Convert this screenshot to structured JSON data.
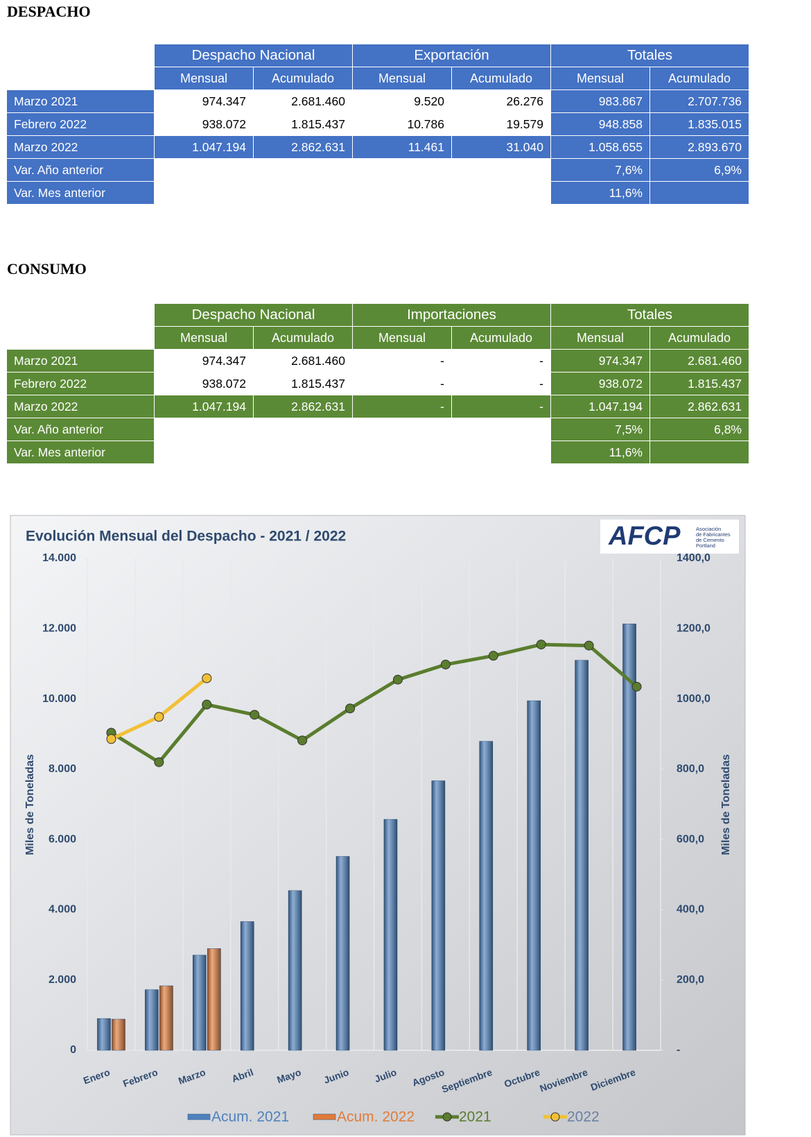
{
  "despacho": {
    "title": "DESPACHO",
    "groups": [
      "Despacho Nacional",
      "Exportación",
      "Totales"
    ],
    "subheaders": [
      "Mensual",
      "Acumulado",
      "Mensual",
      "Acumulado",
      "Mensual",
      "Acumulado"
    ],
    "rows": [
      {
        "label": "Marzo 2021",
        "cells": [
          "974.347",
          "2.681.460",
          "9.520",
          "26.276",
          "983.867",
          "2.707.736"
        ]
      },
      {
        "label": "Febrero 2022",
        "cells": [
          "938.072",
          "1.815.437",
          "10.786",
          "19.579",
          "948.858",
          "1.835.015"
        ]
      },
      {
        "label": "Marzo 2022",
        "cells": [
          "1.047.194",
          "2.862.631",
          "11.461",
          "31.040",
          "1.058.655",
          "2.893.670"
        ]
      }
    ],
    "variations": [
      {
        "label": "Var. Año anterior",
        "cells": [
          "7,6%",
          "6,9%"
        ]
      },
      {
        "label": "Var. Mes anterior",
        "cells": [
          "11,6%"
        ]
      }
    ]
  },
  "consumo": {
    "title": "CONSUMO",
    "groups": [
      "Despacho Nacional",
      "Importaciones",
      "Totales"
    ],
    "subheaders": [
      "Mensual",
      "Acumulado",
      "Mensual",
      "Acumulado",
      "Mensual",
      "Acumulado"
    ],
    "rows": [
      {
        "label": "Marzo 2021",
        "cells": [
          "974.347",
          "2.681.460",
          "-",
          "-",
          "974.347",
          "2.681.460"
        ]
      },
      {
        "label": "Febrero 2022",
        "cells": [
          "938.072",
          "1.815.437",
          "-",
          "-",
          "938.072",
          "1.815.437"
        ]
      },
      {
        "label": "Marzo 2022",
        "cells": [
          "1.047.194",
          "2.862.631",
          "-",
          "-",
          "1.047.194",
          "2.862.631"
        ]
      }
    ],
    "variations": [
      {
        "label": "Var. Año anterior",
        "cells": [
          "7,5%",
          "6,8%"
        ]
      },
      {
        "label": "Var. Mes anterior",
        "cells": [
          "11,6%"
        ]
      }
    ]
  },
  "chart_data": {
    "type": "bar",
    "title": "Evolución Mensual del Despacho - 2021 / 2022",
    "ylabel": "Miles de Toneladas",
    "y2label": "Miles de Toneladas",
    "logo": {
      "text": "AFCP",
      "caption": [
        "Asociación",
        "de Fabricantes",
        "de Cemento",
        "Portland"
      ]
    },
    "categories": [
      "Enero",
      "Febrero",
      "Marzo",
      "Abril",
      "Mayo",
      "Junio",
      "Julio",
      "Agosto",
      "Septiembre",
      "Octubre",
      "Noviembre",
      "Diciembre"
    ],
    "series": [
      {
        "name": "Acum. 2021",
        "type": "bar",
        "color": "#4f81bd",
        "values": [
          904,
          1724,
          2708,
          3663,
          4545,
          5518,
          6573,
          7671,
          8794,
          9949,
          11101,
          12136
        ]
      },
      {
        "name": "Acum. 2022",
        "type": "bar",
        "color": "#e07b39",
        "values": [
          886,
          1835,
          2894,
          null,
          null,
          null,
          null,
          null,
          null,
          null,
          null,
          null
        ]
      },
      {
        "name": "2021",
        "type": "line",
        "axis": "y2",
        "color": "#5a7d2e",
        "values": [
          904,
          820,
          984,
          955,
          882,
          973,
          1055,
          1098,
          1123,
          1155,
          1152,
          1035
        ]
      },
      {
        "name": "2022",
        "type": "line",
        "axis": "y2",
        "color": "#f2c037",
        "values": [
          886,
          949,
          1059,
          null,
          null,
          null,
          null,
          null,
          null,
          null,
          null,
          null
        ]
      }
    ],
    "ylim": [
      0,
      14000
    ],
    "yticks": [
      0,
      {
        "value": 2000,
        "label": "2.000"
      },
      {
        "value": 4000,
        "label": "4.000"
      },
      {
        "value": 6000,
        "label": "6.000"
      },
      {
        "value": 8000,
        "label": "8.000"
      },
      {
        "value": 10000,
        "label": "10.000"
      },
      {
        "value": 12000,
        "label": "12.000"
      },
      {
        "value": 14000,
        "label": "14.000"
      }
    ],
    "y2lim": [
      0,
      1400
    ],
    "y2ticks": [
      {
        "value": 0,
        "label": "-"
      },
      {
        "value": 200,
        "label": "200,0"
      },
      {
        "value": 400,
        "label": "400,0"
      },
      {
        "value": 600,
        "label": "600,0"
      },
      {
        "value": 800,
        "label": "800,0"
      },
      {
        "value": 1000,
        "label": "1000,0"
      },
      {
        "value": 1200,
        "label": "1200,0"
      },
      {
        "value": 1400,
        "label": "1400,0"
      }
    ],
    "legend": "bottom"
  }
}
